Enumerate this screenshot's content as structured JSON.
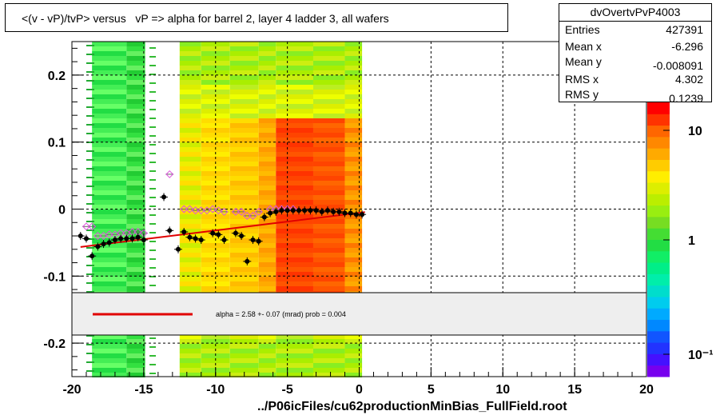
{
  "title": "<(v - vP)/tvP> versus   vP => alpha for barrel 2, layer 4 ladder 3, all wafers",
  "footer": "../P06icFiles/cu62productionMinBias_FullField.root",
  "stats": {
    "name": "dvOvertvPvP4003",
    "rows": [
      {
        "label": "Entries",
        "value": "427391"
      },
      {
        "label": "Mean x",
        "value": "-6.296"
      },
      {
        "label": "Mean y",
        "value": "-0.008091"
      },
      {
        "label": "RMS x",
        "value": "4.302"
      },
      {
        "label": "RMS y",
        "value": "0.1239"
      }
    ]
  },
  "legend": {
    "text": "alpha =    2.58 +-  0.07 (mrad) prob = 0.004",
    "line_color": "#e00000"
  },
  "colors": {
    "fit_line": "#e00000",
    "profile_black": "#000000",
    "profile_pink": "#dd55dd",
    "pad_grid": "#000000"
  },
  "chart_data": {
    "type": "heatmap",
    "title": "<(v - vP)/tvP> versus   vP => alpha for barrel 2, layer 4 ladder 3, all wafers",
    "xlim": [
      -20,
      20
    ],
    "ylim": [
      -0.25,
      0.25
    ],
    "x_ticks": [
      "-20",
      "-15",
      "-10",
      "-5",
      "0",
      "5",
      "10",
      "15",
      "20"
    ],
    "y_ticks": [
      "0.2",
      "0.1",
      "0",
      "-0.1",
      "-0.2"
    ],
    "y_tick_values": [
      0.2,
      0.1,
      0,
      -0.1,
      -0.2
    ],
    "x_tick_values": [
      -20,
      -15,
      -10,
      -5,
      0,
      5,
      10,
      15,
      20
    ],
    "grid": true,
    "z_scale": "log",
    "z_ticks": [
      "10",
      "1",
      "10⁻¹"
    ],
    "series": [
      {
        "kind": "profile_black",
        "x": [
          -19.4,
          -19.0,
          -18.6,
          -18.2,
          -17.8,
          -17.4,
          -17.0,
          -16.6,
          -16.2,
          -15.8,
          -15.4,
          -15.0,
          -13.6,
          -13.2,
          -12.6,
          -12.2,
          -11.8,
          -11.4,
          -11.0,
          -10.2,
          -9.8,
          -9.4,
          -8.6,
          -8.2,
          -7.8,
          -7.4,
          -7.0,
          -6.6,
          -6.2,
          -5.8,
          -5.4,
          -5.0,
          -4.6,
          -4.2,
          -3.8,
          -3.4,
          -3.0,
          -2.6,
          -2.2,
          -1.8,
          -1.4,
          -1.0,
          -0.6,
          -0.2,
          0.2
        ],
        "y": [
          -0.04,
          -0.044,
          -0.07,
          -0.056,
          -0.052,
          -0.05,
          -0.046,
          -0.044,
          -0.044,
          -0.044,
          -0.042,
          -0.046,
          0.018,
          -0.032,
          -0.06,
          -0.034,
          -0.042,
          -0.044,
          -0.046,
          -0.036,
          -0.038,
          -0.046,
          -0.036,
          -0.04,
          -0.078,
          -0.046,
          -0.048,
          -0.012,
          -0.006,
          -0.004,
          -0.002,
          -0.002,
          -0.002,
          -0.002,
          -0.002,
          -0.002,
          -0.002,
          -0.004,
          -0.002,
          -0.004,
          -0.004,
          -0.006,
          -0.006,
          -0.008,
          -0.008
        ]
      },
      {
        "kind": "profile_pink",
        "x": [
          -19.0,
          -18.6,
          -18.2,
          -17.8,
          -17.4,
          -17.0,
          -16.6,
          -16.2,
          -15.8,
          -15.4,
          -15.0,
          -13.2,
          -12.2,
          -11.8,
          -11.4,
          -11.0,
          -10.6,
          -10.2,
          -9.8,
          -9.4,
          -8.6,
          -8.2,
          -7.8,
          -7.4,
          -7.0,
          -6.2,
          -5.8,
          -5.4,
          -5.0,
          -4.6
        ],
        "y": [
          -0.026,
          -0.026,
          -0.04,
          -0.04,
          -0.038,
          -0.038,
          -0.036,
          -0.036,
          -0.034,
          -0.034,
          -0.036,
          0.052,
          0.0,
          0.0,
          -0.002,
          -0.002,
          -0.002,
          0.0,
          -0.002,
          -0.004,
          -0.004,
          -0.004,
          -0.01,
          -0.01,
          -0.004,
          0.0,
          0.0,
          0.0,
          0.0,
          0.0
        ]
      },
      {
        "kind": "fit_line",
        "x": [
          -19.4,
          0.4
        ],
        "y": [
          -0.0565,
          -0.0045
        ]
      }
    ]
  }
}
